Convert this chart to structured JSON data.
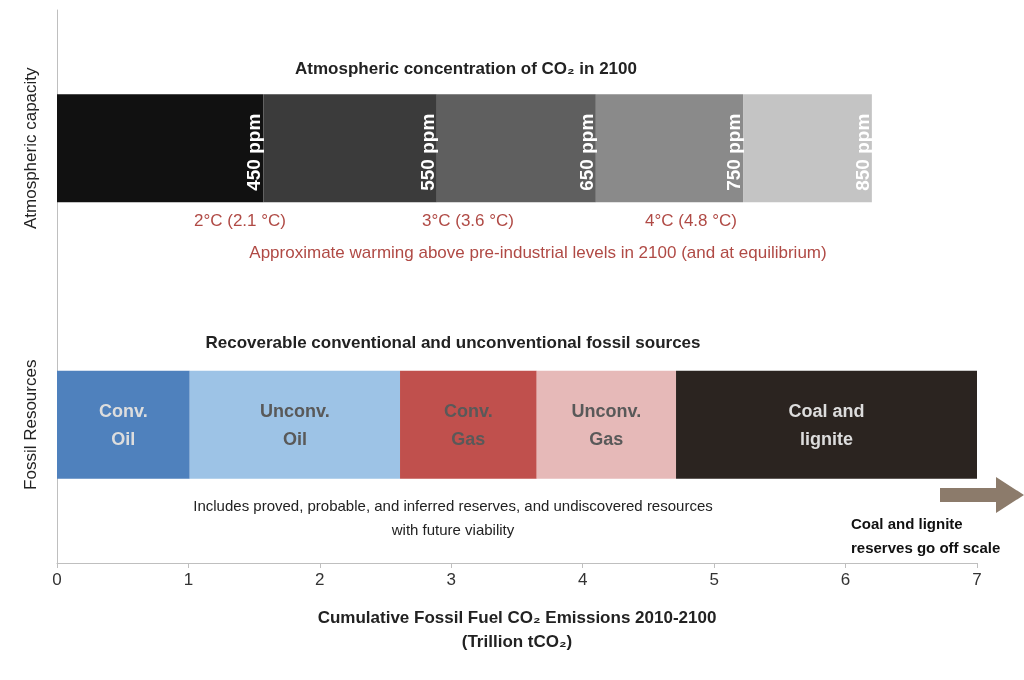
{
  "chart_data": {
    "type": "bar",
    "orientation": "horizontal",
    "stacked": true,
    "categories": [
      "Atmospheric capacity",
      "Fossil Resources"
    ],
    "xlabel": "Cumulative Fossil Fuel CO₂ Emissions 2010-2100\n(Trillion tCO₂)",
    "xlim": [
      0,
      7
    ],
    "xticks": [
      0,
      1,
      2,
      3,
      4,
      5,
      6,
      7
    ],
    "grid": false,
    "series": [
      {
        "name": "450 ppm",
        "color": "#111111",
        "values": [
          1.57,
          null
        ]
      },
      {
        "name": "550 ppm",
        "color": "#3b3b3b",
        "values": [
          1.32,
          null
        ]
      },
      {
        "name": "650 ppm",
        "color": "#5f5f5f",
        "values": [
          1.21,
          null
        ]
      },
      {
        "name": "750 ppm",
        "color": "#8a8a8a",
        "values": [
          1.12,
          null
        ]
      },
      {
        "name": "850 ppm",
        "color": "#c4c4c4",
        "values": [
          0.98,
          null
        ]
      },
      {
        "name": "Conv.\nOil",
        "color": "#4f81bd",
        "values": [
          null,
          1.01
        ]
      },
      {
        "name": "Unconv.\nOil",
        "color": "#9dc3e6",
        "values": [
          null,
          1.6
        ]
      },
      {
        "name": "Conv.\nGas",
        "color": "#c0504d",
        "values": [
          null,
          1.04
        ]
      },
      {
        "name": "Unconv.\nGas",
        "color": "#e6b9b8",
        "values": [
          null,
          1.06
        ]
      },
      {
        "name": "Coal and\nlignite",
        "color": "#2b2420",
        "values": [
          null,
          2.29
        ]
      }
    ],
    "annotations": [
      "Atmospheric concentration of CO₂ in 2100",
      "2°C (2.1 °C)",
      "3°C (3.6 °C)",
      "4°C (4.8 °C)",
      "Approximate warming above pre-industrial levels in 2100 (and at equilibrium)",
      "Recoverable conventional and unconventional fossil sources",
      "Includes proved, probable, and inferred reserves, and undiscovered resources\nwith future viability",
      "Coal and lignite\nreserves go off scale"
    ]
  }
}
